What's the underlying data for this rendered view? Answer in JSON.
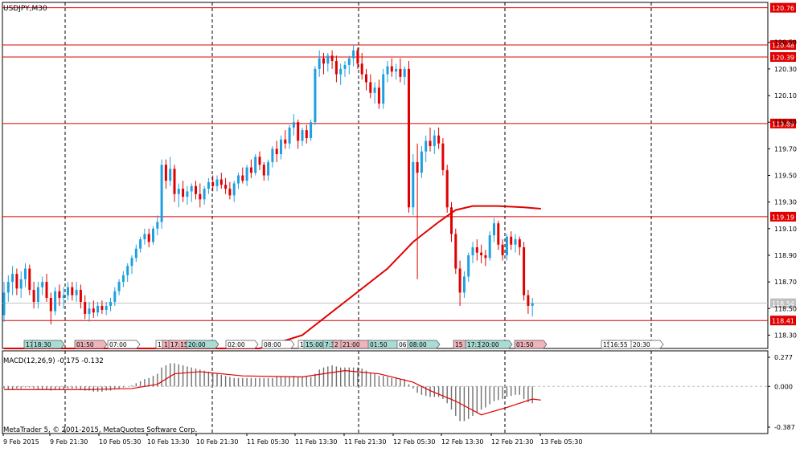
{
  "window": {
    "title": "USDJPY,M30",
    "copyright": "MetaTrader 5, © 2001-2015, MetaQuotes Software Corp."
  },
  "price_axis": {
    "ticks": [
      "120.50",
      "120.30",
      "120.10",
      "119.90",
      "119.70",
      "119.50",
      "119.30",
      "119.10",
      "118.90",
      "118.70",
      "118.50",
      "118.30"
    ],
    "tick_values": [
      120.5,
      120.3,
      120.1,
      119.9,
      119.7,
      119.5,
      119.3,
      119.1,
      118.9,
      118.7,
      118.5,
      118.3
    ],
    "range": [
      118.2,
      120.8
    ]
  },
  "levels": [
    {
      "label": "120.76",
      "value": 120.76
    },
    {
      "label": "120.48",
      "value": 120.48
    },
    {
      "label": "120.39",
      "value": 120.39
    },
    {
      "label": "119.89",
      "value": 119.89
    },
    {
      "label": "119.19",
      "value": 119.19
    },
    {
      "label": "118.41",
      "value": 118.41
    }
  ],
  "current_price": {
    "label": "118.54",
    "value": 118.54
  },
  "time_axis": [
    "9 Feb 2015",
    "9 Feb 21:30",
    "10 Feb 05:30",
    "10 Feb 13:30",
    "10 Feb 21:30",
    "11 Feb 05:30",
    "11 Feb 13:30",
    "11 Feb 21:30",
    "12 Feb 05:30",
    "12 Feb 13:30",
    "12 Feb 21:30",
    "13 Feb 05:30"
  ],
  "event_markers": [
    {
      "text": "17",
      "color": "teal"
    },
    {
      "text": "18:30",
      "color": "teal"
    },
    {
      "text": "01:50",
      "color": "red"
    },
    {
      "text": "07:00",
      "color": "gray"
    },
    {
      "text": "1",
      "color": "gray"
    },
    {
      "text": "1",
      "color": "red"
    },
    {
      "text": "17:15",
      "color": "red"
    },
    {
      "text": "20:00",
      "color": "teal"
    },
    {
      "text": "02:00",
      "color": "gray"
    },
    {
      "text": "08:00",
      "color": "gray"
    },
    {
      "text": "1",
      "color": "gray"
    },
    {
      "text": "15:00",
      "color": "teal"
    },
    {
      "text": "7:3",
      "color": "teal"
    },
    {
      "text": "2",
      "color": "red"
    },
    {
      "text": "21:00",
      "color": "red"
    },
    {
      "text": "01:50",
      "color": "teal"
    },
    {
      "text": "06",
      "color": "gray"
    },
    {
      "text": "08:00",
      "color": "teal"
    },
    {
      "text": "15",
      "color": "red"
    },
    {
      "text": "17:3",
      "color": "teal"
    },
    {
      "text": "20:00",
      "color": "teal"
    },
    {
      "text": "01:50",
      "color": "red"
    },
    {
      "text": "15",
      "color": "gray"
    },
    {
      "text": "16:55",
      "color": "gray"
    },
    {
      "text": "20:30",
      "color": "gray"
    }
  ],
  "macd": {
    "label": "MACD(12,26,9) -0.175 -0.132",
    "axis_labels": [
      "0.277",
      "0.000",
      "-0.387"
    ],
    "range": [
      -0.387,
      0.277
    ]
  },
  "chart_data": {
    "type": "candlestick",
    "symbol": "USDJPY",
    "timeframe": "M30",
    "ohlc": [
      [
        118.45,
        118.7,
        118.4,
        118.62
      ],
      [
        118.62,
        118.75,
        118.55,
        118.7
      ],
      [
        118.7,
        118.82,
        118.6,
        118.76
      ],
      [
        118.76,
        118.8,
        118.6,
        118.65
      ],
      [
        118.65,
        118.78,
        118.58,
        118.72
      ],
      [
        118.72,
        118.84,
        118.66,
        118.8
      ],
      [
        118.8,
        118.83,
        118.6,
        118.64
      ],
      [
        118.64,
        118.7,
        118.5,
        118.55
      ],
      [
        118.55,
        118.7,
        118.5,
        118.66
      ],
      [
        118.66,
        118.74,
        118.6,
        118.7
      ],
      [
        118.7,
        118.76,
        118.55,
        118.58
      ],
      [
        118.58,
        118.62,
        118.38,
        118.48
      ],
      [
        118.48,
        118.66,
        118.45,
        118.63
      ],
      [
        118.63,
        118.68,
        118.52,
        118.58
      ],
      [
        118.58,
        118.66,
        118.5,
        118.6
      ],
      [
        118.6,
        118.7,
        118.56,
        118.66
      ],
      [
        118.66,
        118.7,
        118.56,
        118.6
      ],
      [
        118.6,
        118.7,
        118.55,
        118.64
      ],
      [
        118.64,
        118.68,
        118.5,
        118.55
      ],
      [
        118.55,
        118.6,
        118.42,
        118.46
      ],
      [
        118.46,
        118.55,
        118.4,
        118.5
      ],
      [
        118.5,
        118.56,
        118.43,
        118.47
      ],
      [
        118.47,
        118.55,
        118.44,
        118.52
      ],
      [
        118.52,
        118.56,
        118.46,
        118.49
      ],
      [
        118.49,
        118.55,
        118.45,
        118.52
      ],
      [
        118.52,
        118.58,
        118.48,
        118.55
      ],
      [
        118.55,
        118.66,
        118.52,
        118.63
      ],
      [
        118.63,
        118.72,
        118.6,
        118.7
      ],
      [
        118.7,
        118.78,
        118.66,
        118.75
      ],
      [
        118.75,
        118.84,
        118.7,
        118.82
      ],
      [
        118.82,
        118.9,
        118.76,
        118.88
      ],
      [
        118.88,
        118.98,
        118.85,
        118.95
      ],
      [
        118.95,
        119.04,
        118.92,
        119.02
      ],
      [
        119.02,
        119.1,
        118.98,
        119.06
      ],
      [
        119.06,
        119.1,
        118.96,
        119.0
      ],
      [
        119.0,
        119.12,
        118.98,
        119.1
      ],
      [
        119.1,
        119.2,
        119.05,
        119.15
      ],
      [
        119.15,
        119.62,
        119.1,
        119.58
      ],
      [
        119.58,
        119.62,
        119.4,
        119.46
      ],
      [
        119.46,
        119.64,
        119.42,
        119.55
      ],
      [
        119.55,
        119.58,
        119.3,
        119.36
      ],
      [
        119.36,
        119.44,
        119.26,
        119.4
      ],
      [
        119.4,
        119.46,
        119.3,
        119.34
      ],
      [
        119.34,
        119.42,
        119.28,
        119.38
      ],
      [
        119.38,
        119.44,
        119.3,
        119.42
      ],
      [
        119.42,
        119.46,
        119.32,
        119.36
      ],
      [
        119.36,
        119.44,
        119.26,
        119.32
      ],
      [
        119.32,
        119.42,
        119.28,
        119.4
      ],
      [
        119.4,
        119.48,
        119.36,
        119.45
      ],
      [
        119.45,
        119.5,
        119.38,
        119.42
      ],
      [
        119.42,
        119.5,
        119.38,
        119.47
      ],
      [
        119.47,
        119.52,
        119.4,
        119.43
      ],
      [
        119.43,
        119.48,
        119.36,
        119.4
      ],
      [
        119.4,
        119.45,
        119.32,
        119.35
      ],
      [
        119.35,
        119.46,
        119.3,
        119.44
      ],
      [
        119.44,
        119.52,
        119.4,
        119.5
      ],
      [
        119.5,
        119.56,
        119.44,
        119.46
      ],
      [
        119.46,
        119.58,
        119.42,
        119.56
      ],
      [
        119.56,
        119.62,
        119.48,
        119.52
      ],
      [
        119.52,
        119.66,
        119.5,
        119.64
      ],
      [
        119.64,
        119.68,
        119.54,
        119.58
      ],
      [
        119.58,
        119.6,
        119.46,
        119.5
      ],
      [
        119.5,
        119.62,
        119.46,
        119.6
      ],
      [
        119.6,
        119.72,
        119.56,
        119.7
      ],
      [
        119.7,
        119.76,
        119.6,
        119.66
      ],
      [
        119.66,
        119.8,
        119.62,
        119.77
      ],
      [
        119.77,
        119.84,
        119.7,
        119.74
      ],
      [
        119.74,
        119.88,
        119.7,
        119.86
      ],
      [
        119.86,
        119.96,
        119.8,
        119.9
      ],
      [
        119.9,
        119.92,
        119.7,
        119.76
      ],
      [
        119.76,
        119.86,
        119.72,
        119.84
      ],
      [
        119.84,
        119.88,
        119.74,
        119.78
      ],
      [
        119.78,
        119.92,
        119.76,
        119.9
      ],
      [
        119.9,
        120.32,
        119.88,
        120.3
      ],
      [
        120.3,
        120.44,
        120.24,
        120.38
      ],
      [
        120.38,
        120.42,
        120.26,
        120.34
      ],
      [
        120.34,
        120.42,
        120.28,
        120.4
      ],
      [
        120.4,
        120.44,
        120.3,
        120.36
      ],
      [
        120.36,
        120.4,
        120.2,
        120.26
      ],
      [
        120.26,
        120.34,
        120.18,
        120.3
      ],
      [
        120.3,
        120.36,
        120.24,
        120.33
      ],
      [
        120.33,
        120.4,
        120.26,
        120.38
      ],
      [
        120.38,
        120.48,
        120.32,
        120.44
      ],
      [
        120.44,
        120.46,
        120.3,
        120.34
      ],
      [
        120.34,
        120.42,
        120.22,
        120.26
      ],
      [
        120.26,
        120.3,
        120.14,
        120.2
      ],
      [
        120.2,
        120.26,
        120.08,
        120.12
      ],
      [
        120.12,
        120.2,
        120.04,
        120.16
      ],
      [
        120.16,
        120.22,
        120.0,
        120.04
      ],
      [
        120.04,
        120.3,
        120.0,
        120.26
      ],
      [
        120.26,
        120.36,
        120.2,
        120.32
      ],
      [
        120.32,
        120.38,
        120.24,
        120.28
      ],
      [
        120.28,
        120.34,
        120.22,
        120.3
      ],
      [
        120.3,
        120.38,
        120.2,
        120.24
      ],
      [
        120.24,
        120.32,
        120.18,
        120.3
      ],
      [
        120.3,
        120.36,
        119.22,
        119.26
      ],
      [
        119.26,
        119.66,
        119.2,
        119.6
      ],
      [
        119.6,
        119.74,
        118.72,
        119.52
      ],
      [
        119.52,
        119.72,
        119.48,
        119.68
      ],
      [
        119.68,
        119.8,
        119.6,
        119.76
      ],
      [
        119.76,
        119.86,
        119.68,
        119.72
      ],
      [
        119.72,
        119.84,
        119.66,
        119.8
      ],
      [
        119.8,
        119.86,
        119.7,
        119.74
      ],
      [
        119.74,
        119.78,
        119.5,
        119.54
      ],
      [
        119.54,
        119.58,
        119.22,
        119.26
      ],
      [
        119.26,
        119.3,
        119.0,
        119.06
      ],
      [
        119.06,
        119.1,
        118.76,
        118.8
      ],
      [
        118.8,
        118.86,
        118.52,
        118.62
      ],
      [
        118.62,
        118.78,
        118.58,
        118.74
      ],
      [
        118.74,
        118.92,
        118.7,
        118.9
      ],
      [
        118.9,
        119.0,
        118.84,
        118.96
      ],
      [
        118.96,
        119.02,
        118.86,
        118.92
      ],
      [
        118.92,
        118.98,
        118.84,
        118.9
      ],
      [
        118.9,
        118.94,
        118.82,
        118.88
      ],
      [
        118.88,
        119.08,
        118.86,
        119.05
      ],
      [
        119.05,
        119.18,
        119.0,
        119.14
      ],
      [
        119.14,
        119.16,
        118.94,
        118.98
      ],
      [
        118.98,
        119.02,
        118.86,
        118.9
      ],
      [
        118.9,
        119.06,
        118.86,
        119.04
      ],
      [
        119.04,
        119.08,
        118.94,
        118.98
      ],
      [
        118.98,
        119.06,
        118.92,
        119.02
      ],
      [
        119.02,
        119.04,
        118.9,
        118.96
      ],
      [
        118.96,
        119.0,
        118.56,
        118.6
      ],
      [
        118.6,
        118.64,
        118.46,
        118.52
      ],
      [
        118.52,
        118.58,
        118.44,
        118.54
      ]
    ],
    "moving_average": [
      [
        0,
        117.6
      ],
      [
        40,
        117.7
      ],
      [
        50,
        117.85
      ],
      [
        60,
        118.05
      ],
      [
        70,
        118.3
      ],
      [
        80,
        118.55
      ],
      [
        90,
        118.8
      ],
      [
        96,
        119.0
      ],
      [
        102,
        119.15
      ],
      [
        106,
        119.24
      ],
      [
        110,
        119.27
      ],
      [
        116,
        119.27
      ],
      [
        122,
        119.26
      ],
      [
        126,
        119.25
      ]
    ],
    "macd_hist": [
      -0.02,
      -0.03,
      -0.03,
      -0.02,
      -0.02,
      -0.01,
      -0.01,
      -0.02,
      -0.03,
      -0.03,
      -0.03,
      -0.04,
      -0.03,
      -0.03,
      -0.03,
      -0.02,
      -0.02,
      -0.02,
      -0.03,
      -0.04,
      -0.04,
      -0.05,
      -0.05,
      -0.05,
      -0.04,
      -0.04,
      -0.03,
      -0.02,
      -0.01,
      0.0,
      0.01,
      0.03,
      0.05,
      0.07,
      0.08,
      0.1,
      0.12,
      0.18,
      0.2,
      0.22,
      0.22,
      0.21,
      0.2,
      0.19,
      0.18,
      0.17,
      0.16,
      0.15,
      0.14,
      0.13,
      0.12,
      0.11,
      0.1,
      0.09,
      0.08,
      0.08,
      0.08,
      0.08,
      0.08,
      0.08,
      0.08,
      0.08,
      0.08,
      0.08,
      0.09,
      0.09,
      0.09,
      0.09,
      0.1,
      0.09,
      0.09,
      0.09,
      0.09,
      0.12,
      0.16,
      0.18,
      0.19,
      0.2,
      0.19,
      0.18,
      0.18,
      0.18,
      0.18,
      0.18,
      0.17,
      0.15,
      0.13,
      0.12,
      0.1,
      0.1,
      0.09,
      0.08,
      0.08,
      0.07,
      0.07,
      0.02,
      -0.02,
      -0.06,
      -0.08,
      -0.09,
      -0.1,
      -0.1,
      -0.1,
      -0.12,
      -0.16,
      -0.22,
      -0.28,
      -0.33,
      -0.33,
      -0.31,
      -0.28,
      -0.25,
      -0.22,
      -0.2,
      -0.17,
      -0.14,
      -0.13,
      -0.12,
      -0.1,
      -0.09,
      -0.08,
      -0.08,
      -0.12,
      -0.15,
      -0.16
    ],
    "macd_signal": [
      [
        0,
        -0.03
      ],
      [
        20,
        -0.03
      ],
      [
        30,
        -0.02
      ],
      [
        36,
        0.02
      ],
      [
        40,
        0.12
      ],
      [
        46,
        0.14
      ],
      [
        56,
        0.1
      ],
      [
        70,
        0.09
      ],
      [
        80,
        0.15
      ],
      [
        88,
        0.12
      ],
      [
        96,
        0.04
      ],
      [
        100,
        -0.04
      ],
      [
        106,
        -0.14
      ],
      [
        112,
        -0.27
      ],
      [
        118,
        -0.2
      ],
      [
        124,
        -0.12
      ],
      [
        126,
        -0.13
      ]
    ]
  }
}
